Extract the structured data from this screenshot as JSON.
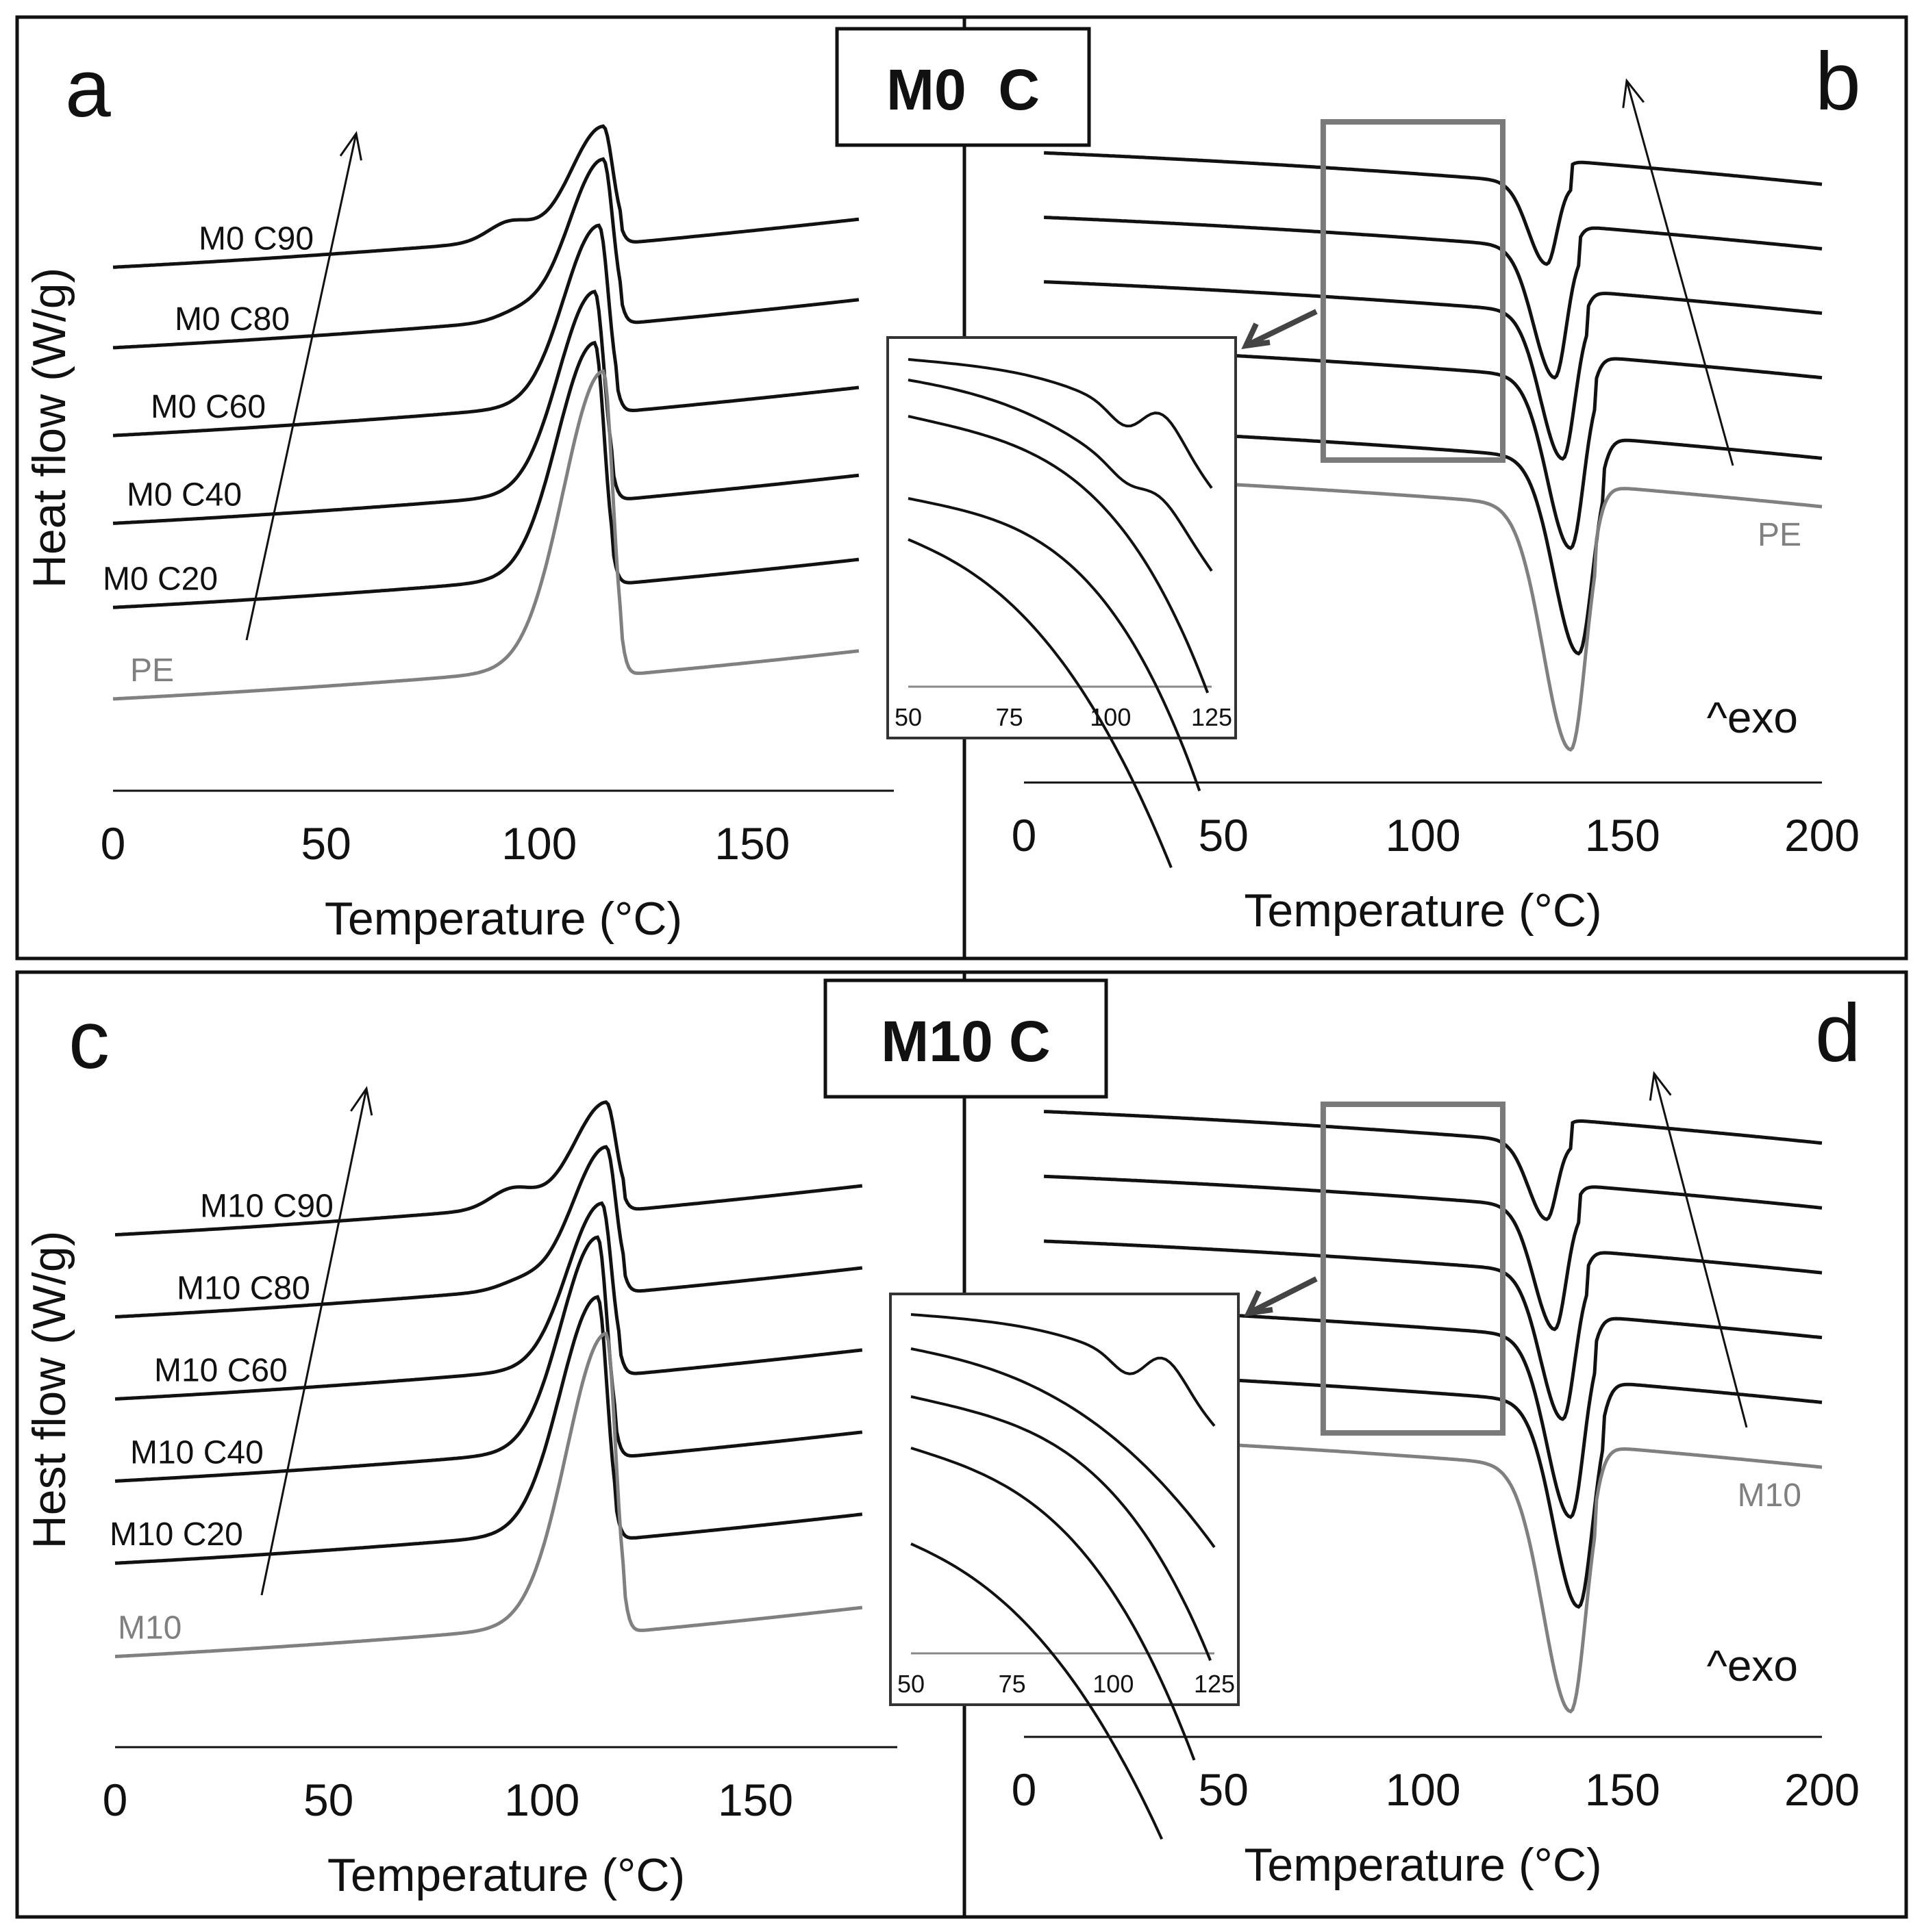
{
  "figure": {
    "colors": {
      "sample": "#111111",
      "reference": "#808080",
      "box": "#7a7a7a",
      "frame": "#111111"
    }
  },
  "chart_data": [
    {
      "panel": "a",
      "group_title": "M0  C",
      "type": "line",
      "xlabel": "Temperature (°C)",
      "ylabel": "Heat flow (W/g)",
      "xlim": [
        0,
        180
      ],
      "xticks": [
        "0",
        "50",
        "100",
        "150"
      ],
      "description_trend": "arrow pointing from M0 C20 toward M0 C90",
      "series": [
        {
          "name": "M0 C90",
          "color": "#111111",
          "baseline": 0.0,
          "peak_x": 115,
          "peak_h": 2.9,
          "bump_x": 93,
          "bump_h": 0.5
        },
        {
          "name": "M0 C80",
          "color": "#111111",
          "baseline": -2.2,
          "peak_x": 115,
          "peak_h": 4.2,
          "bump_x": 95,
          "bump_h": 0.2
        },
        {
          "name": "M0 C60",
          "color": "#111111",
          "baseline": -4.6,
          "peak_x": 114,
          "peak_h": 4.8,
          "bump_x": 0,
          "bump_h": 0
        },
        {
          "name": "M0 C40",
          "color": "#111111",
          "baseline": -7.0,
          "peak_x": 113,
          "peak_h": 5.4,
          "bump_x": 0,
          "bump_h": 0
        },
        {
          "name": "M0 C20",
          "color": "#111111",
          "baseline": -9.3,
          "peak_x": 113,
          "peak_h": 6.3,
          "bump_x": 0,
          "bump_h": 0
        },
        {
          "name": "PE",
          "color": "#808080",
          "baseline": -11.8,
          "peak_x": 115,
          "peak_h": 8.0,
          "bump_x": 0,
          "bump_h": 0
        }
      ]
    },
    {
      "panel": "b",
      "type": "line",
      "xlabel": "Temperature (°C)",
      "ylabel": "",
      "xlim": [
        0,
        200
      ],
      "xticks": [
        "0",
        "50",
        "100",
        "150",
        "200"
      ],
      "annotation": "^exo",
      "series": [
        {
          "name": "",
          "color": "#111111",
          "baseline": 0.0,
          "peak_x": 131,
          "peak_h": 2.0
        },
        {
          "name": "",
          "color": "#111111",
          "baseline": -1.6,
          "peak_x": 133,
          "peak_h": 3.2
        },
        {
          "name": "",
          "color": "#111111",
          "baseline": -3.2,
          "peak_x": 135,
          "peak_h": 3.6
        },
        {
          "name": "",
          "color": "#111111",
          "baseline": -4.8,
          "peak_x": 137,
          "peak_h": 4.2
        },
        {
          "name": "",
          "color": "#111111",
          "baseline": -6.8,
          "peak_x": 139,
          "peak_h": 4.8
        },
        {
          "name": "PE",
          "color": "#808080",
          "baseline": -8.0,
          "peak_x": 137,
          "peak_h": 6.0
        }
      ],
      "inset": {
        "xticks": [
          "50",
          "75",
          "100",
          "125"
        ],
        "zoom_range": [
          75,
          120
        ]
      }
    },
    {
      "panel": "c",
      "group_title": "M10 C",
      "type": "line",
      "xlabel": "Temperature (°C)",
      "ylabel": "Hest flow (W/g)",
      "xlim": [
        0,
        180
      ],
      "xticks": [
        "0",
        "50",
        "100",
        "150"
      ],
      "description_trend": "arrow pointing from M10 C20 toward M10 C90",
      "series": [
        {
          "name": "M10 C90",
          "color": "#111111",
          "baseline": 0.0,
          "peak_x": 115,
          "peak_h": 2.6,
          "bump_x": 93,
          "bump_h": 0.5
        },
        {
          "name": "M10 C80",
          "color": "#111111",
          "baseline": -2.2,
          "peak_x": 115,
          "peak_h": 3.6,
          "bump_x": 95,
          "bump_h": 0.2
        },
        {
          "name": "M10 C60",
          "color": "#111111",
          "baseline": -4.4,
          "peak_x": 114,
          "peak_h": 4.3,
          "bump_x": 0,
          "bump_h": 0
        },
        {
          "name": "M10 C40",
          "color": "#111111",
          "baseline": -6.6,
          "peak_x": 113,
          "peak_h": 5.6,
          "bump_x": 0,
          "bump_h": 0
        },
        {
          "name": "M10 C20",
          "color": "#111111",
          "baseline": -8.8,
          "peak_x": 113,
          "peak_h": 6.2,
          "bump_x": 0,
          "bump_h": 0
        },
        {
          "name": "M10",
          "color": "#808080",
          "baseline": -11.3,
          "peak_x": 115,
          "peak_h": 7.7,
          "bump_x": 0,
          "bump_h": 0
        }
      ]
    },
    {
      "panel": "d",
      "type": "line",
      "xlabel": "Temperature (°C)",
      "ylabel": "",
      "xlim": [
        0,
        200
      ],
      "xticks": [
        "0",
        "50",
        "100",
        "150",
        "200"
      ],
      "annotation": "^exo",
      "series": [
        {
          "name": "",
          "color": "#111111",
          "baseline": 0.0,
          "peak_x": 131,
          "peak_h": 1.9
        },
        {
          "name": "",
          "color": "#111111",
          "baseline": -1.6,
          "peak_x": 133,
          "peak_h": 3.0
        },
        {
          "name": "",
          "color": "#111111",
          "baseline": -3.2,
          "peak_x": 135,
          "peak_h": 3.6
        },
        {
          "name": "",
          "color": "#111111",
          "baseline": -4.8,
          "peak_x": 137,
          "peak_h": 4.4
        },
        {
          "name": "",
          "color": "#111111",
          "baseline": -6.4,
          "peak_x": 139,
          "peak_h": 5.0
        },
        {
          "name": "M10",
          "color": "#808080",
          "baseline": -8.0,
          "peak_x": 137,
          "peak_h": 6.0
        }
      ],
      "inset": {
        "xticks": [
          "50",
          "75",
          "100",
          "125"
        ],
        "zoom_range": [
          75,
          120
        ]
      }
    }
  ]
}
